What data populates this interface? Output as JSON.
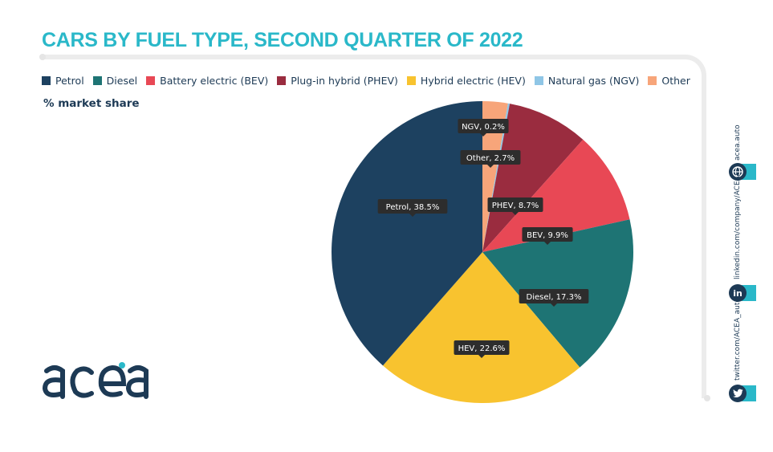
{
  "title": "CARS BY FUEL TYPE, SECOND QUARTER OF 2022",
  "unit_label": "% market share",
  "brand": "acea",
  "legend": [
    {
      "label": "Petrol",
      "color": "#1d4160"
    },
    {
      "label": "Diesel",
      "color": "#1e7474"
    },
    {
      "label": "Battery electric (BEV)",
      "color": "#e84855"
    },
    {
      "label": "Plug-in hybrid (PHEV)",
      "color": "#9a2c3f"
    },
    {
      "label": "Hybrid electric (HEV)",
      "color": "#f8c32f"
    },
    {
      "label": "Natural gas (NGV)",
      "color": "#8fc6e6"
    },
    {
      "label": "Other",
      "color": "#f7a57a"
    }
  ],
  "sidebar": {
    "website": "acea.auto",
    "linkedin": "linkedin.com/company/ACEA/",
    "twitter": "twitter.com/ACEA_auto",
    "web_icon": "globe-icon",
    "linkedin_icon": "linkedin-icon",
    "twitter_icon": "twitter-icon"
  },
  "chart_data": {
    "type": "pie",
    "title": "CARS BY FUEL TYPE, SECOND QUARTER OF 2022",
    "ylabel": "% market share",
    "legend_position": "top",
    "slices": [
      {
        "name": "Other",
        "value": 2.7,
        "label": "Other, 2.7%",
        "color": "#f7a57a"
      },
      {
        "name": "NGV",
        "value": 0.2,
        "label": "NGV, 0.2%",
        "color": "#8fc6e6"
      },
      {
        "name": "PHEV",
        "value": 8.7,
        "label": "PHEV, 8.7%",
        "color": "#9a2c3f"
      },
      {
        "name": "BEV",
        "value": 9.9,
        "label": "BEV, 9.9%",
        "color": "#e84855"
      },
      {
        "name": "Diesel",
        "value": 17.3,
        "label": "Diesel, 17.3%",
        "color": "#1e7474"
      },
      {
        "name": "HEV",
        "value": 22.6,
        "label": "HEV, 22.6%",
        "color": "#f8c32f"
      },
      {
        "name": "Petrol",
        "value": 38.5,
        "label": "Petrol, 38.5%",
        "color": "#1d4160"
      }
    ]
  }
}
